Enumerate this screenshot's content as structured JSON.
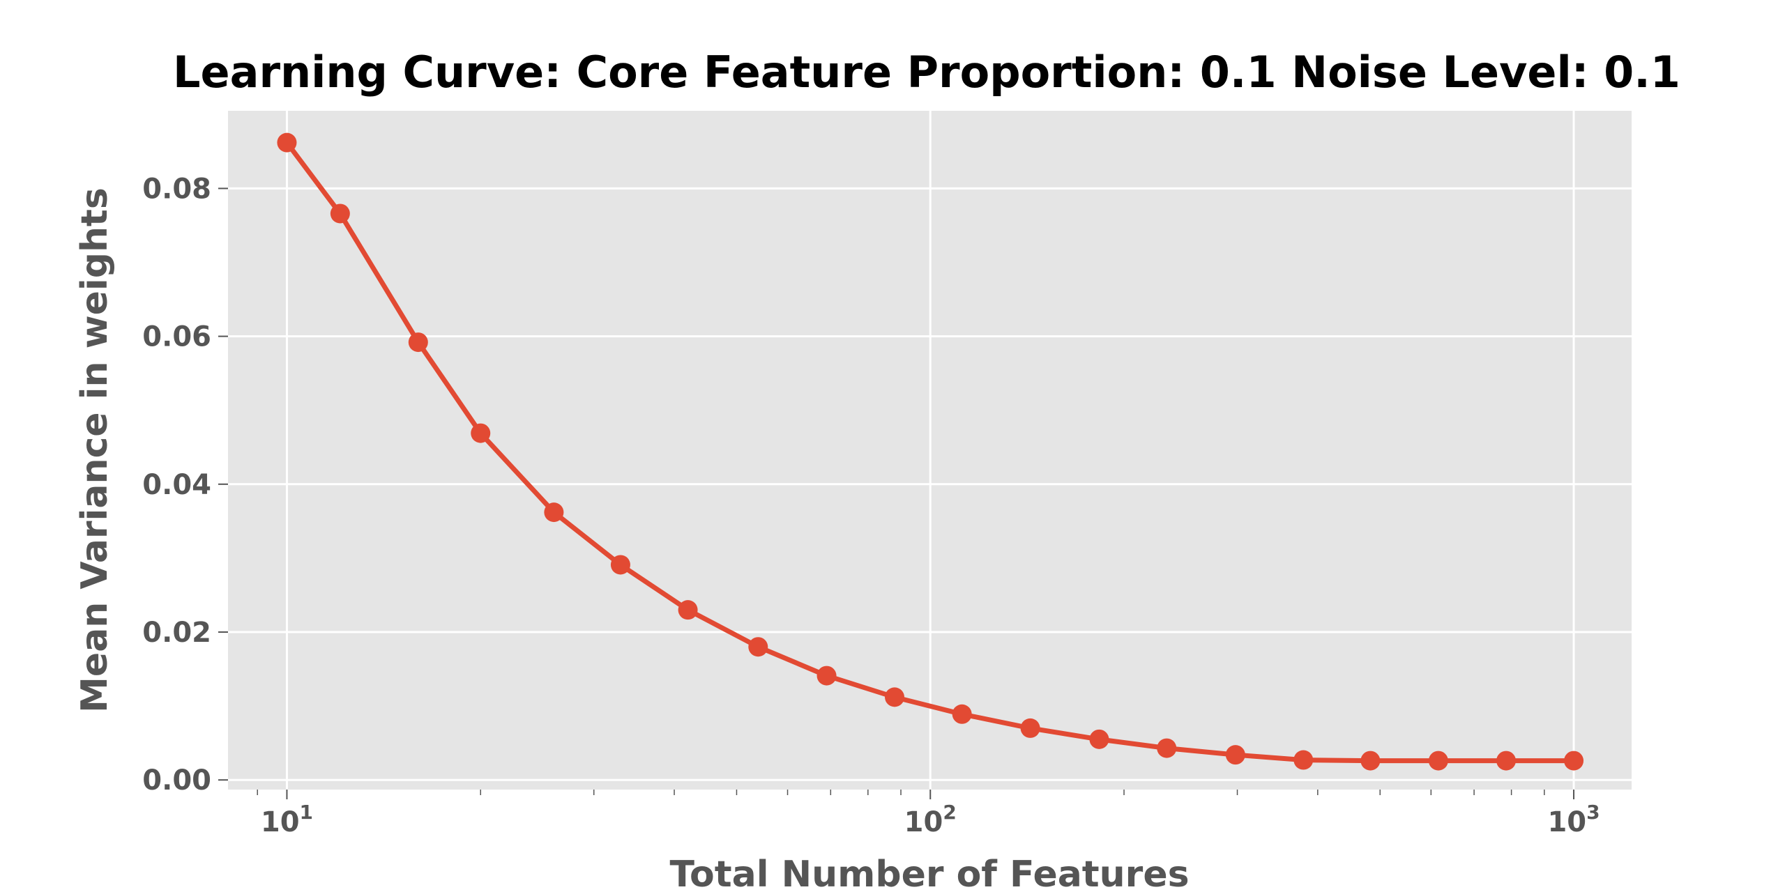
{
  "chart_data": {
    "type": "line",
    "title": "Learning Curve: Core Feature Proportion: 0.1 Noise Level: 0.1",
    "xlabel": "Total Number of Features",
    "ylabel": "Mean Variance in weights",
    "xscale": "log",
    "xlim": [
      8.1,
      1230
    ],
    "ylim": [
      -0.0013,
      0.0905
    ],
    "x_ticks": [
      {
        "value": 10,
        "base": "10",
        "exp": "1"
      },
      {
        "value": 100,
        "base": "10",
        "exp": "2"
      },
      {
        "value": 1000,
        "base": "10",
        "exp": "3"
      }
    ],
    "y_ticks": [
      {
        "value": 0.0,
        "label": "0.00"
      },
      {
        "value": 0.02,
        "label": "0.02"
      },
      {
        "value": 0.04,
        "label": "0.04"
      },
      {
        "value": 0.06,
        "label": "0.06"
      },
      {
        "value": 0.08,
        "label": "0.08"
      }
    ],
    "grid": true,
    "background_color": "#e5e5e5",
    "grid_color": "#ffffff",
    "series": [
      {
        "color": "#e24a33",
        "x": [
          10,
          12.1,
          16.0,
          20.0,
          26.0,
          33.0,
          42.0,
          54.0,
          69.0,
          88.0,
          112,
          143,
          183,
          233,
          298,
          380,
          483,
          616,
          785,
          1000
        ],
        "y": [
          0.0862,
          0.0766,
          0.0592,
          0.0469,
          0.0362,
          0.0291,
          0.023,
          0.018,
          0.0141,
          0.0112,
          0.0089,
          0.007,
          0.0055,
          0.0043,
          0.0034,
          0.0027,
          0.0026,
          0.0026,
          0.0026,
          0.0026
        ]
      }
    ]
  }
}
